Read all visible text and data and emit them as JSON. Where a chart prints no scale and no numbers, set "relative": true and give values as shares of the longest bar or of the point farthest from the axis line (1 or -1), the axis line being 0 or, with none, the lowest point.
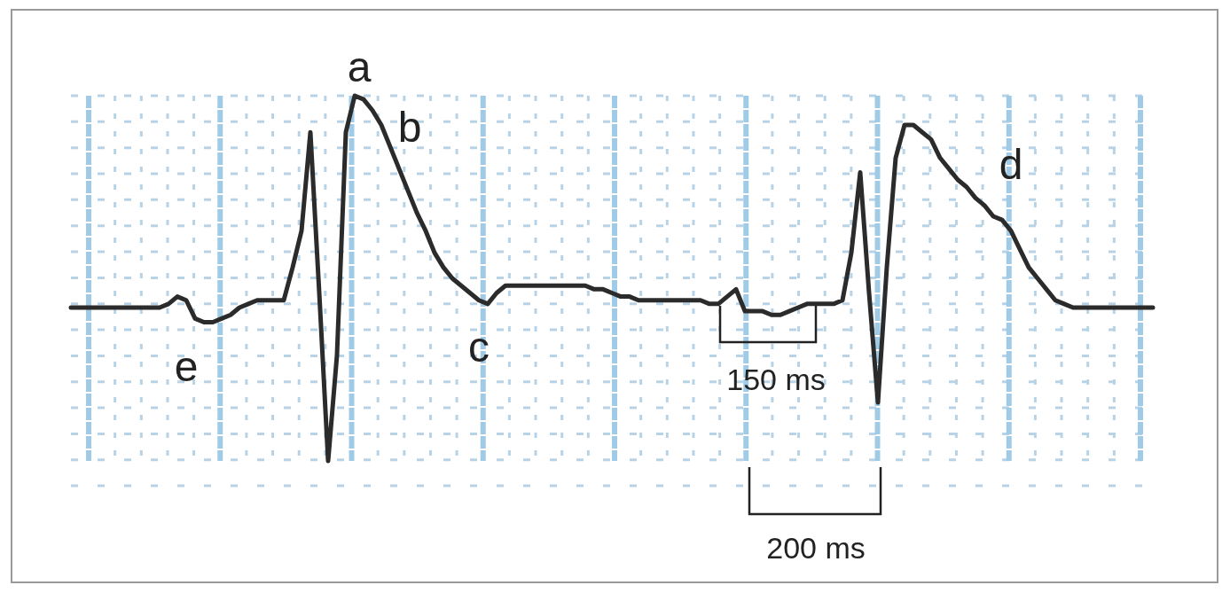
{
  "chart_data": {
    "type": "line",
    "relative": true,
    "grid": true,
    "tick_labels": false,
    "categories": [
      null,
      null,
      null,
      null,
      null,
      null,
      null,
      null,
      null,
      null,
      null,
      null,
      null,
      null,
      null,
      null,
      null,
      null,
      null,
      null,
      null,
      null,
      null,
      null,
      null,
      null,
      null,
      null,
      null,
      null,
      null,
      null,
      null,
      null,
      null,
      null,
      null,
      null,
      null,
      null,
      null,
      null,
      null,
      null,
      null,
      null,
      null,
      null,
      null,
      null,
      null,
      null,
      null,
      null,
      null,
      null,
      null,
      null,
      null,
      null,
      null,
      null,
      null,
      null,
      null,
      null,
      null,
      null,
      null,
      null,
      null,
      null,
      null,
      null,
      null,
      null,
      null,
      null,
      null,
      null,
      null,
      null,
      null,
      null,
      null,
      null,
      null,
      null,
      null,
      null,
      null,
      null,
      null,
      null,
      null,
      null,
      null,
      null,
      null,
      null,
      null,
      null,
      null,
      null,
      null,
      null,
      null,
      null,
      null,
      null,
      null,
      null,
      null,
      null,
      null,
      null,
      null,
      null,
      null,
      null,
      null,
      null,
      null
    ],
    "series": [
      {
        "color": "#2b2b2b",
        "values": [
          0.42,
          0.42,
          0.42,
          0.42,
          0.42,
          0.42,
          0.42,
          0.42,
          0.42,
          0.42,
          0.42,
          0.43,
          0.45,
          0.44,
          0.39,
          0.38,
          0.38,
          0.39,
          0.4,
          0.42,
          0.43,
          0.44,
          0.44,
          0.44,
          0.44,
          0.53,
          0.63,
          0.9,
          0.46,
          0,
          0.29,
          0.9,
          1,
          0.99,
          0.96,
          0.92,
          0.86,
          0.8,
          0.74,
          0.68,
          0.63,
          0.57,
          0.53,
          0.5,
          0.48,
          0.46,
          0.44,
          0.43,
          0.46,
          0.48,
          0.48,
          0.48,
          0.48,
          0.48,
          0.48,
          0.48,
          0.48,
          0.48,
          0.48,
          0.47,
          0.47,
          0.46,
          0.45,
          0.45,
          0.44,
          0.44,
          0.44,
          0.44,
          0.44,
          0.44,
          0.44,
          0.44,
          0.43,
          0.43,
          0.45,
          0.47,
          0.41,
          0.41,
          0.41,
          0.4,
          0.4,
          0.41,
          0.42,
          0.43,
          0.43,
          0.43,
          0.43,
          0.44,
          0.57,
          0.79,
          0.46,
          0.16,
          0.53,
          0.83,
          0.92,
          0.92,
          0.9,
          0.88,
          0.83,
          0.8,
          0.77,
          0.75,
          0.72,
          0.7,
          0.67,
          0.66,
          0.63,
          0.58,
          0.53,
          0.5,
          0.47,
          0.44,
          0.43,
          0.42,
          0.42,
          0.42,
          0.42,
          0.42,
          0.42,
          0.42,
          0.42,
          0.42,
          0.42
        ]
      }
    ],
    "annotations": [
      "a",
      "b",
      "c",
      "d",
      "e",
      "150 ms",
      "200 ms"
    ]
  }
}
